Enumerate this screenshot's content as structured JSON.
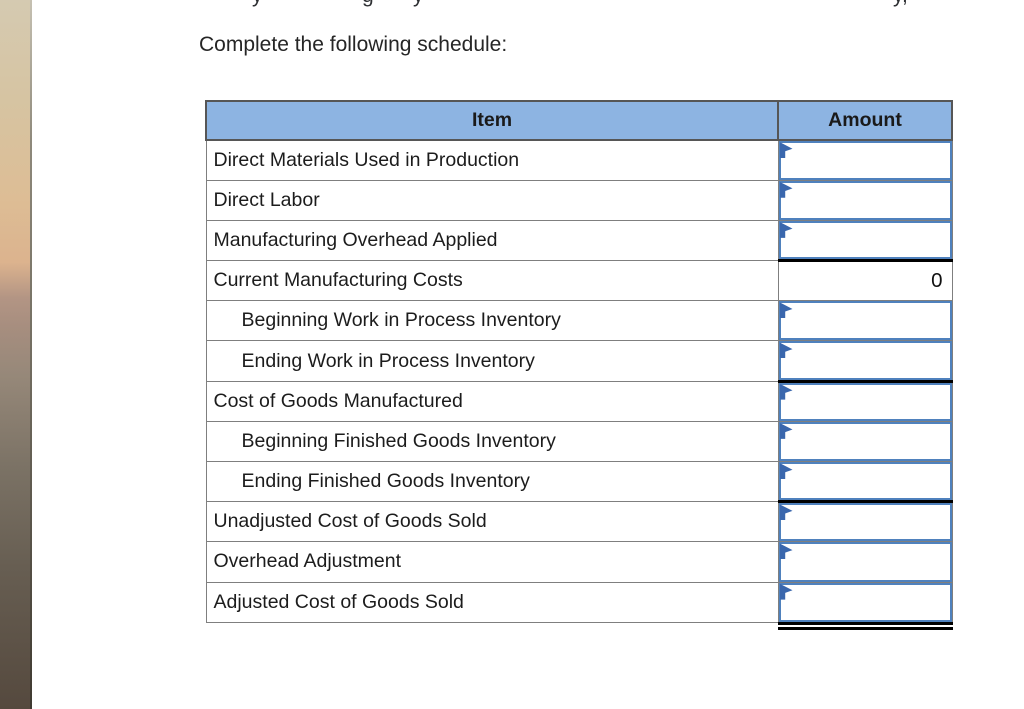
{
  "page": {
    "instruction": "Complete the following schedule:",
    "top_clipped_fragments": [
      {
        "char": "y"
      },
      {
        "char": "g"
      },
      {
        "char": "y"
      },
      {
        "char": "y,"
      }
    ]
  },
  "schedule_table": {
    "headers": {
      "item": "Item",
      "amount": "Amount"
    },
    "rows": [
      {
        "item": "Direct Materials Used in Production",
        "amount": "",
        "indent": false,
        "editable": true
      },
      {
        "item": "Direct Labor",
        "amount": "",
        "indent": false,
        "editable": true
      },
      {
        "item": "Manufacturing Overhead Applied",
        "amount": "",
        "indent": false,
        "editable": true
      },
      {
        "item": "Current Manufacturing Costs",
        "amount": "0",
        "indent": false,
        "editable": false
      },
      {
        "item": "Beginning Work in Process Inventory",
        "amount": "",
        "indent": true,
        "editable": true
      },
      {
        "item": "Ending Work in Process Inventory",
        "amount": "",
        "indent": true,
        "editable": true
      },
      {
        "item": "Cost of Goods Manufactured",
        "amount": "",
        "indent": false,
        "editable": true
      },
      {
        "item": "Beginning Finished Goods Inventory",
        "amount": "",
        "indent": true,
        "editable": true
      },
      {
        "item": "Ending Finished Goods Inventory",
        "amount": "",
        "indent": true,
        "editable": true
      },
      {
        "item": "Unadjusted Cost of Goods Sold",
        "amount": "",
        "indent": false,
        "editable": true
      },
      {
        "item": "Overhead Adjustment",
        "amount": "",
        "indent": false,
        "editable": true
      },
      {
        "item": "Adjusted Cost of Goods Sold",
        "amount": "",
        "indent": false,
        "editable": true
      }
    ]
  },
  "colors": {
    "header_fill": "#8db4e2",
    "header_border": "#565656",
    "grid_line": "#7f7f7f",
    "input_border": "#4f81bd",
    "flag_marker": "#3a67ad",
    "accounting_rule": "#000000"
  }
}
